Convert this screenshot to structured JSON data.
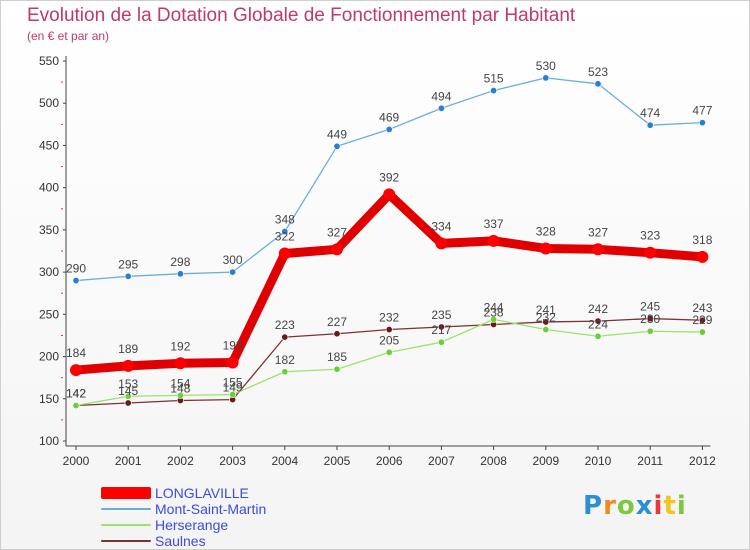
{
  "chart_data": {
    "type": "line",
    "title": "Evolution de la Dotation Globale de Fonctionnement par Habitant",
    "subtitle": "(en € et par an)",
    "categories": [
      "2000",
      "2001",
      "2002",
      "2003",
      "2004",
      "2005",
      "2006",
      "2007",
      "2008",
      "2009",
      "2010",
      "2011",
      "2012"
    ],
    "ylim": [
      100,
      550
    ],
    "yticks": [
      100,
      150,
      200,
      250,
      300,
      350,
      400,
      450,
      500,
      550
    ],
    "grid": false,
    "series": [
      {
        "name": "LONGLAVILLE",
        "color": "#ff0000",
        "values": [
          184,
          189,
          192,
          193,
          322,
          327,
          392,
          334,
          337,
          328,
          327,
          323,
          318
        ]
      },
      {
        "name": "Mont-Saint-Martin",
        "color": "#6aaee0",
        "values": [
          290,
          295,
          298,
          300,
          348,
          449,
          469,
          494,
          515,
          530,
          523,
          474,
          477
        ]
      },
      {
        "name": "Herserange",
        "color": "#9be36b",
        "values": [
          142,
          153,
          154,
          155,
          182,
          185,
          205,
          217,
          244,
          232,
          224,
          230,
          229
        ]
      },
      {
        "name": "Saulnes",
        "color": "#7a3232",
        "values": [
          142,
          145,
          148,
          149,
          223,
          227,
          232,
          235,
          238,
          241,
          242,
          245,
          243
        ]
      }
    ],
    "legend_position": "bottom-left"
  },
  "brand": {
    "letters": [
      "P",
      "r",
      "o",
      "x",
      "i",
      "t",
      "i"
    ],
    "colors": [
      "#2b8fd6",
      "#f28a1e",
      "#7ec93a",
      "#2b8fd6",
      "#e63a3a",
      "#f2c41e",
      "#7ec93a"
    ]
  }
}
